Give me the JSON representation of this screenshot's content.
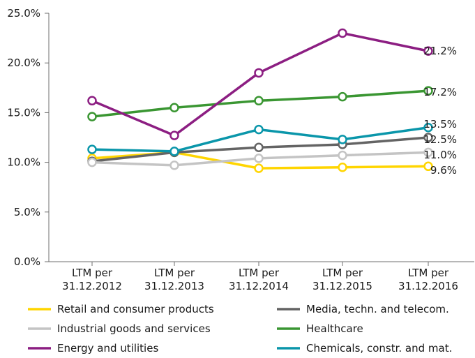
{
  "chart_data": {
    "type": "line",
    "categories": [
      [
        "LTM per",
        "31.12.2012"
      ],
      [
        "LTM per",
        "31.12.2013"
      ],
      [
        "LTM per",
        "31.12.2014"
      ],
      [
        "LTM per",
        "31.12.2015"
      ],
      [
        "LTM per",
        "31.12.2016"
      ]
    ],
    "y_ticks": [
      "0.0%",
      "5.0%",
      "10.0%",
      "15.0%",
      "20.0%",
      "25.0%"
    ],
    "ylim": [
      0,
      25
    ],
    "grid": false,
    "legend_position": "bottom",
    "series": [
      {
        "name": "Retail and consumer products",
        "color": "#FFD500",
        "values": [
          10.4,
          11.0,
          9.4,
          9.5,
          9.6
        ],
        "end_label": "9.6%"
      },
      {
        "name": "Media, techn. and telecom.",
        "color": "#646464",
        "values": [
          10.1,
          11.0,
          11.5,
          11.8,
          12.5
        ],
        "end_label": "12.5%"
      },
      {
        "name": "Industrial goods and services",
        "color": "#C4C4C4",
        "values": [
          10.0,
          9.7,
          10.4,
          10.7,
          11.0
        ],
        "end_label": "11.0%"
      },
      {
        "name": "Healthcare",
        "color": "#3A9632",
        "values": [
          14.6,
          15.5,
          16.2,
          16.6,
          17.2
        ],
        "end_label": "17.2%"
      },
      {
        "name": "Energy and utilities",
        "color": "#8C1E82",
        "values": [
          16.2,
          12.7,
          19.0,
          23.0,
          21.2
        ],
        "end_label": "21.2%"
      },
      {
        "name": "Chemicals, constr. and mat.",
        "color": "#0A96AA",
        "values": [
          11.3,
          11.1,
          13.3,
          12.3,
          13.5
        ],
        "end_label": "13.5%"
      }
    ]
  }
}
